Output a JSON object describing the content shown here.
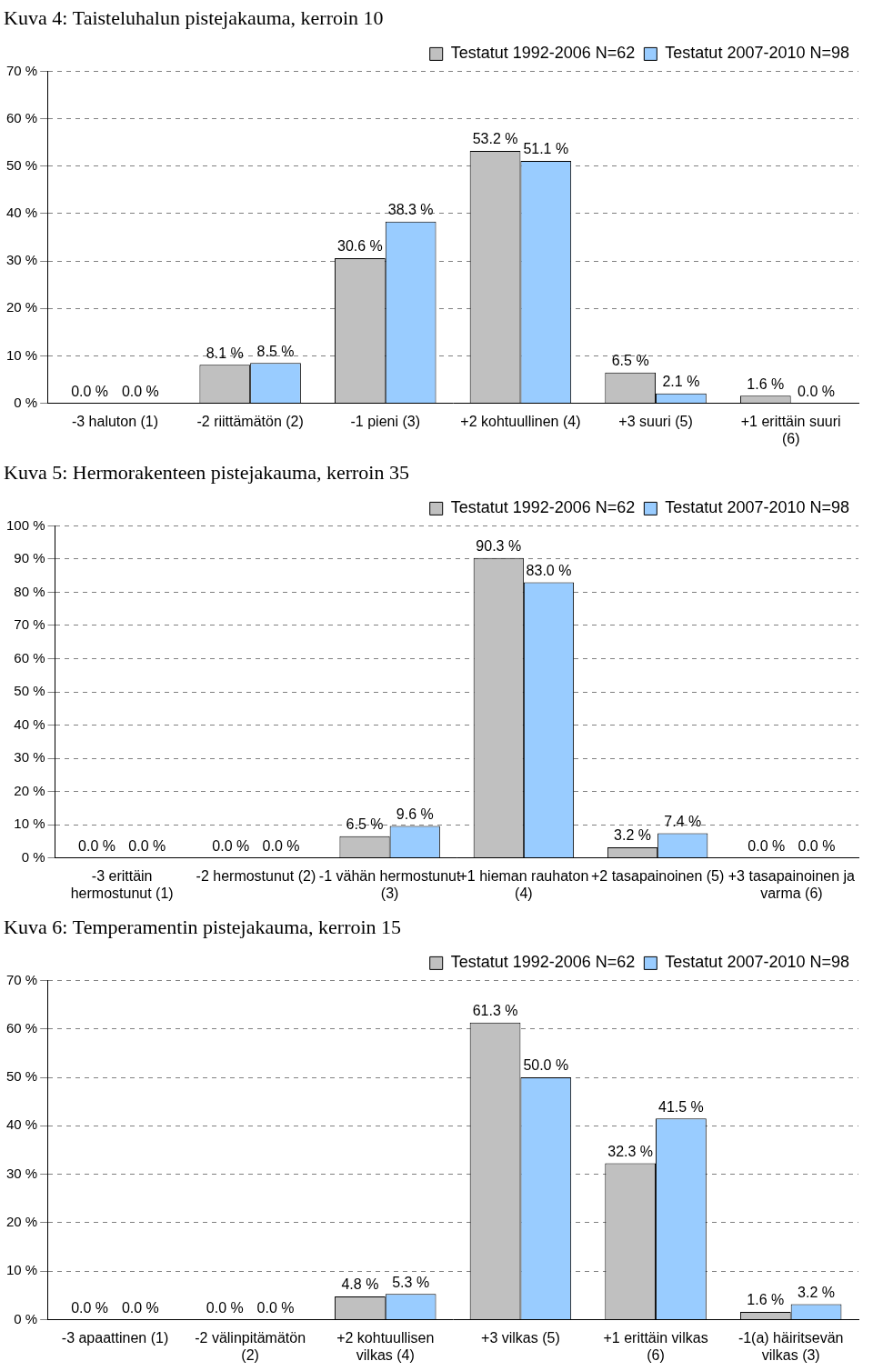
{
  "chart_data": [
    {
      "type": "bar",
      "title": "Kuva 4: Taisteluhalun pistejakauma, kerroin 10",
      "categories": [
        "-3 haluton (1)",
        "-2 riittämätön (2)",
        "-1 pieni (3)",
        "+2 kohtuullinen (4)",
        "+3 suuri (5)",
        "+1 erittäin suuri (6)"
      ],
      "series": [
        {
          "name": "Testatut 1992-2006 N=62",
          "color": "#c0c0c0",
          "values": [
            0.0,
            8.1,
            30.6,
            53.2,
            6.5,
            1.6
          ],
          "value_labels": [
            "0.0 %",
            "8.1 %",
            "30.6 %",
            "53.2 %",
            "6.5 %",
            "1.6 %"
          ]
        },
        {
          "name": "Testatut 2007-2010 N=98",
          "color": "#99ccff",
          "values": [
            0.0,
            8.5,
            38.3,
            51.1,
            2.1,
            0.0
          ],
          "value_labels": [
            "0.0 %",
            "8.5 %",
            "38.3 %",
            "51.1 %",
            "2.1 %",
            "0.0 %"
          ]
        }
      ],
      "ylim": [
        0,
        70
      ],
      "yticks": [
        {
          "value": 0,
          "label": "0 %"
        },
        {
          "value": 10,
          "label": "10 %"
        },
        {
          "value": 20,
          "label": "20 %"
        },
        {
          "value": 30,
          "label": "30 %"
        },
        {
          "value": 40,
          "label": "40 %"
        },
        {
          "value": 50,
          "label": "50 %"
        },
        {
          "value": 60,
          "label": "60 %"
        },
        {
          "value": 70,
          "label": "70 %"
        }
      ],
      "grid": true,
      "legend": "top-right",
      "data_labels": true
    },
    {
      "type": "bar",
      "title": "Kuva 5: Hermorakenteen pistejakauma, kerroin 35",
      "categories": [
        "-3 erittäin hermostunut (1)",
        "-2 hermostunut (2)",
        "-1 vähän hermostunut (3)",
        "+1 hieman rauhaton (4)",
        "+2 tasapainoinen (5)",
        "+3 tasapainoinen ja varma (6)"
      ],
      "series": [
        {
          "name": "Testatut 1992-2006 N=62",
          "color": "#c0c0c0",
          "values": [
            0.0,
            0.0,
            6.5,
            90.3,
            3.2,
            0.0
          ],
          "value_labels": [
            "0.0 %",
            "0.0 %",
            "6.5 %",
            "90.3 %",
            "3.2 %",
            "0.0 %"
          ]
        },
        {
          "name": "Testatut 2007-2010 N=98",
          "color": "#99ccff",
          "values": [
            0.0,
            0.0,
            9.6,
            83.0,
            7.4,
            0.0
          ],
          "value_labels": [
            "0.0 %",
            "0.0 %",
            "9.6 %",
            "83.0 %",
            "7.4 %",
            "0.0 %"
          ]
        }
      ],
      "ylim": [
        0,
        100
      ],
      "yticks": [
        {
          "value": 0,
          "label": "0 %"
        },
        {
          "value": 10,
          "label": "10 %"
        },
        {
          "value": 20,
          "label": "20 %"
        },
        {
          "value": 30,
          "label": "30 %"
        },
        {
          "value": 40,
          "label": "40 %"
        },
        {
          "value": 50,
          "label": "50 %"
        },
        {
          "value": 60,
          "label": "60 %"
        },
        {
          "value": 70,
          "label": "70 %"
        },
        {
          "value": 80,
          "label": "80 %"
        },
        {
          "value": 90,
          "label": "90 %"
        },
        {
          "value": 100,
          "label": "100 %"
        }
      ],
      "grid": true,
      "legend": "top-right",
      "data_labels": true
    },
    {
      "type": "bar",
      "title": "Kuva 6: Temperamentin pistejakauma, kerroin 15",
      "categories": [
        "-3 apaattinen (1)",
        "-2 välinpitämätön (2)",
        "+2 kohtuullisen vilkas (4)",
        "+3 vilkas (5)",
        "+1 erittäin vilkas (6)",
        "-1(a) häiritsevän vilkas (3)"
      ],
      "series": [
        {
          "name": "Testatut 1992-2006 N=62",
          "color": "#c0c0c0",
          "values": [
            0.0,
            0.0,
            4.8,
            61.3,
            32.3,
            1.6
          ],
          "value_labels": [
            "0.0 %",
            "0.0 %",
            "4.8 %",
            "61.3 %",
            "32.3 %",
            "1.6 %"
          ]
        },
        {
          "name": "Testatut 2007-2010 N=98",
          "color": "#99ccff",
          "values": [
            0.0,
            0.0,
            5.3,
            50.0,
            41.5,
            3.2
          ],
          "value_labels": [
            "0.0 %",
            "0.0 %",
            "5.3 %",
            "50.0 %",
            "41.5 %",
            "3.2 %"
          ]
        }
      ],
      "ylim": [
        0,
        70
      ],
      "yticks": [
        {
          "value": 0,
          "label": "0 %"
        },
        {
          "value": 10,
          "label": "10 %"
        },
        {
          "value": 20,
          "label": "20 %"
        },
        {
          "value": 30,
          "label": "30 %"
        },
        {
          "value": 40,
          "label": "40 %"
        },
        {
          "value": 50,
          "label": "50 %"
        },
        {
          "value": 60,
          "label": "60 %"
        },
        {
          "value": 70,
          "label": "70 %"
        }
      ],
      "grid": true,
      "legend": "top-right",
      "data_labels": true
    }
  ]
}
